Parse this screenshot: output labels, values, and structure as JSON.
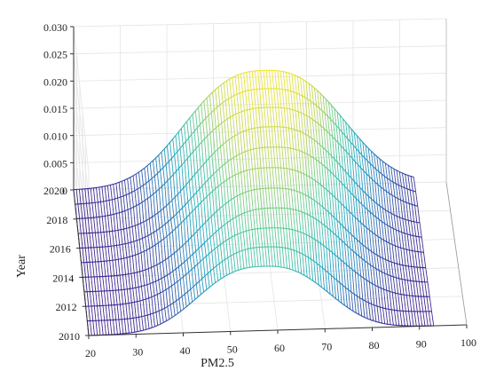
{
  "chart_data": {
    "type": "surface3d",
    "title": "",
    "xlabel": "PM2.5",
    "ylabel": "Year",
    "zlabel": "",
    "xlim": [
      20,
      100
    ],
    "ylim": [
      2010,
      2020
    ],
    "zlim": [
      0,
      0.03
    ],
    "x_ticks": [
      "20",
      "30",
      "40",
      "50",
      "60",
      "70",
      "80",
      "90",
      "100"
    ],
    "y_ticks": [
      "2010",
      "2012",
      "2014",
      "2016",
      "2018",
      "2020"
    ],
    "z_ticks": [
      "0",
      "0.005",
      "0.010",
      "0.015",
      "0.020",
      "0.025",
      "0.030"
    ],
    "grid": true,
    "colormap": [
      "#3b1f8e",
      "#2a6fb5",
      "#21a8c0",
      "#4fc79a",
      "#b9d35a",
      "#f6e62a"
    ],
    "surface": {
      "x_range": [
        20,
        93
      ],
      "years": [
        2010,
        2011,
        2012,
        2013,
        2014,
        2015,
        2016,
        2017,
        2018,
        2019,
        2020
      ],
      "peak_center_pm25": [
        57,
        58,
        59,
        60,
        60,
        60,
        61,
        61,
        61,
        61,
        61
      ],
      "peak_width_pm25": [
        13,
        13,
        14,
        14,
        14,
        15,
        15,
        15,
        16,
        16,
        16
      ],
      "peak_density": [
        0.0118,
        0.0127,
        0.0135,
        0.0145,
        0.0155,
        0.0166,
        0.0177,
        0.0188,
        0.0197,
        0.0205,
        0.0212
      ]
    }
  }
}
